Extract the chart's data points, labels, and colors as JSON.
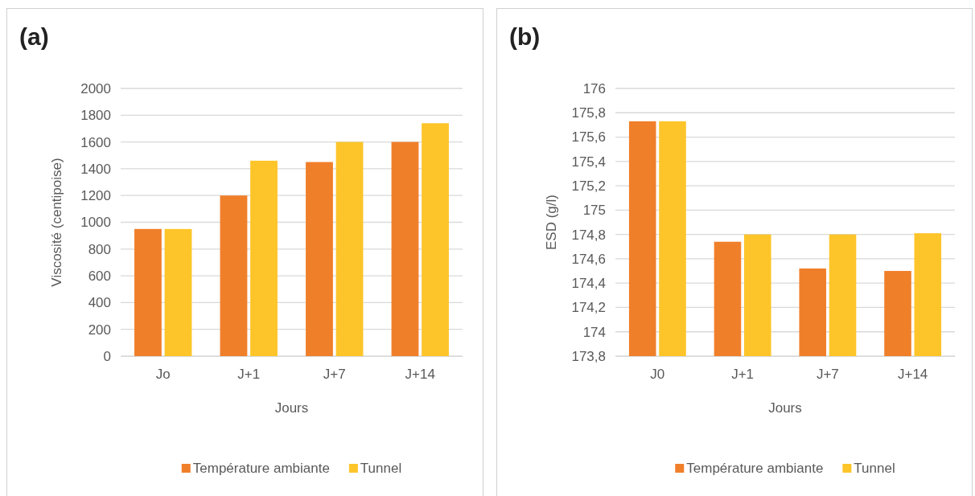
{
  "chart_data": [
    {
      "type": "bar",
      "title": "(a)",
      "xlabel": "Jours",
      "ylabel": "Viscosité (centipoise)",
      "categories": [
        "Jo",
        "J+1",
        "J+7",
        "J+14"
      ],
      "series": [
        {
          "name": "Température ambiante",
          "color": "#f07f2a",
          "values": [
            950,
            1200,
            1450,
            1600
          ]
        },
        {
          "name": "Tunnel",
          "color": "#fdc52a",
          "values": [
            950,
            1460,
            1600,
            1740
          ]
        }
      ],
      "ylim": [
        0,
        2000
      ],
      "yticks": [
        0,
        200,
        400,
        600,
        800,
        1000,
        1200,
        1400,
        1600,
        1800,
        2000
      ],
      "grid": "y",
      "legend": "bottom"
    },
    {
      "type": "bar",
      "title": "(b)",
      "xlabel": "Jours",
      "ylabel": "ESD (g/l)",
      "categories": [
        "J0",
        "J+1",
        "J+7",
        "J+14"
      ],
      "series": [
        {
          "name": "Température ambiante",
          "color": "#f07f2a",
          "values": [
            175.73,
            174.74,
            174.52,
            174.5
          ]
        },
        {
          "name": "Tunnel",
          "color": "#fdc52a",
          "values": [
            175.73,
            174.8,
            174.8,
            174.81
          ]
        }
      ],
      "ylim": [
        173.8,
        176
      ],
      "yticks": [
        {
          "value": 173.8,
          "label": "173,8"
        },
        174,
        {
          "value": 174.2,
          "label": "174,2"
        },
        {
          "value": 174.4,
          "label": "174,4"
        },
        {
          "value": 174.6,
          "label": "174,6"
        },
        {
          "value": 174.8,
          "label": "174,8"
        },
        175,
        {
          "value": 175.2,
          "label": "175,2"
        },
        {
          "value": 175.4,
          "label": "175,4"
        },
        {
          "value": 175.6,
          "label": "175,6"
        },
        {
          "value": 175.8,
          "label": "175,8"
        },
        176
      ],
      "grid": "y",
      "legend": "bottom"
    }
  ]
}
